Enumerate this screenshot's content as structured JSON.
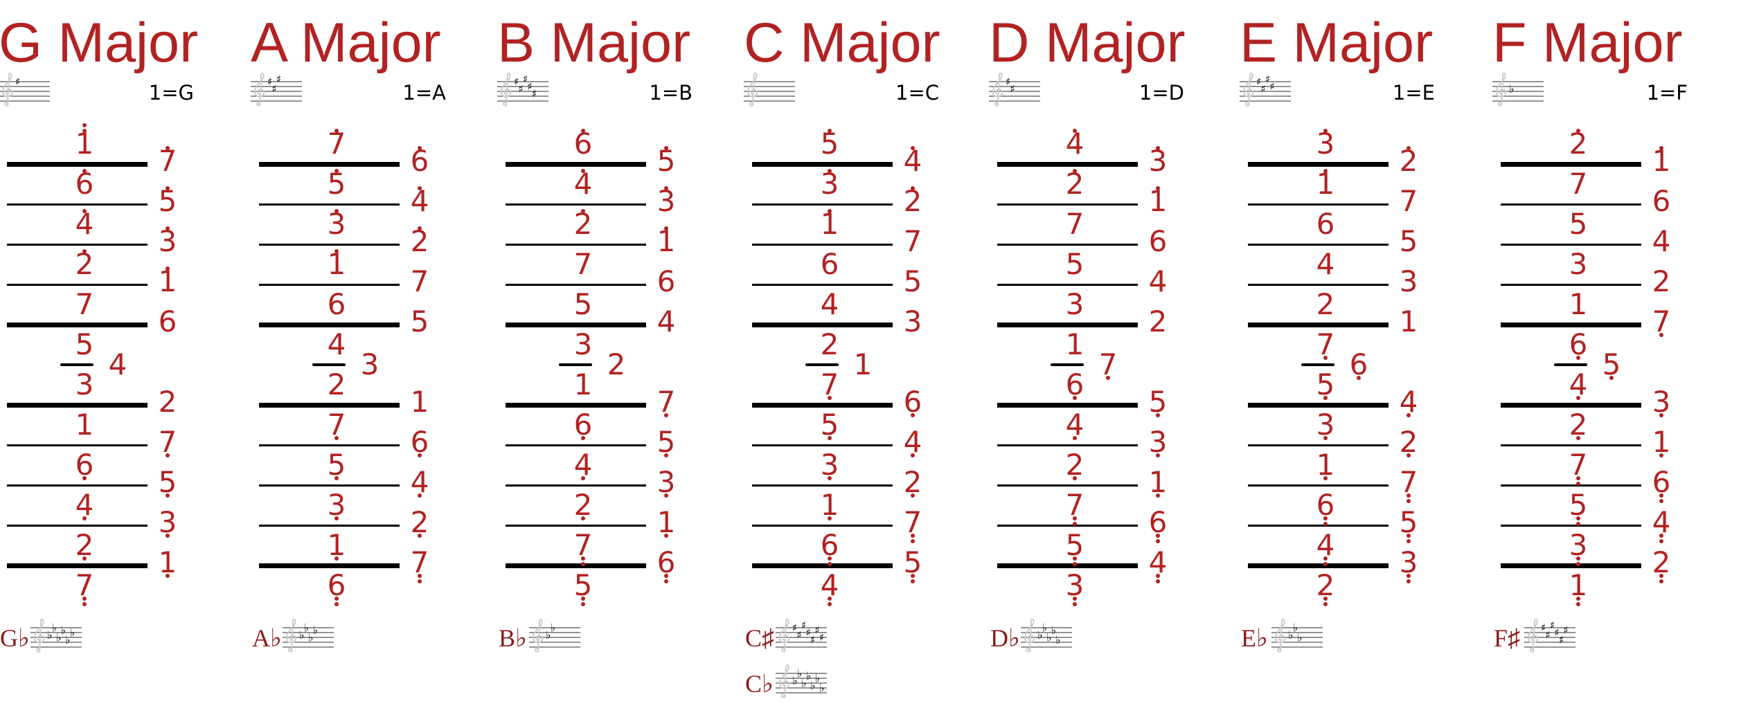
{
  "colors": {
    "accent": "#b22222",
    "label": "#8b1a1a",
    "clef": "#cccccc",
    "lines": "#000000"
  },
  "columns": [
    {
      "title": "G Major",
      "tonic_label": "1=G",
      "key_signature": {
        "type": "sharp",
        "count": 1
      },
      "notes": [
        {
          "d": "1",
          "o": 2
        },
        {
          "d": "7",
          "o": 1
        },
        {
          "d": "6",
          "o": 1
        },
        {
          "d": "5",
          "o": 1
        },
        {
          "d": "4",
          "o": 1
        },
        {
          "d": "3",
          "o": 1
        },
        {
          "d": "2",
          "o": 1
        },
        {
          "d": "1",
          "o": 1
        },
        {
          "d": "7",
          "o": 0
        },
        {
          "d": "6",
          "o": 0
        },
        {
          "d": "5",
          "o": 0
        },
        {
          "d": "4",
          "o": 0
        },
        {
          "d": "3",
          "o": 0
        },
        {
          "d": "2",
          "o": 0
        },
        {
          "d": "1",
          "o": 0
        },
        {
          "d": "7",
          "o": -1
        },
        {
          "d": "6",
          "o": -1
        },
        {
          "d": "5",
          "o": -1
        },
        {
          "d": "4",
          "o": -1
        },
        {
          "d": "3",
          "o": -1
        },
        {
          "d": "2",
          "o": -1
        },
        {
          "d": "1",
          "o": -1
        },
        {
          "d": "7",
          "o": -2
        }
      ],
      "enharmonics": [
        {
          "label": "G♭",
          "key_signature": {
            "type": "flat",
            "count": 6
          }
        }
      ]
    },
    {
      "title": "A Major",
      "tonic_label": "1=A",
      "key_signature": {
        "type": "sharp",
        "count": 3
      },
      "notes": [
        {
          "d": "7",
          "o": 1
        },
        {
          "d": "6",
          "o": 1
        },
        {
          "d": "5",
          "o": 1
        },
        {
          "d": "4",
          "o": 1
        },
        {
          "d": "3",
          "o": 1
        },
        {
          "d": "2",
          "o": 1
        },
        {
          "d": "1",
          "o": 1
        },
        {
          "d": "7",
          "o": 0
        },
        {
          "d": "6",
          "o": 0
        },
        {
          "d": "5",
          "o": 0
        },
        {
          "d": "4",
          "o": 0
        },
        {
          "d": "3",
          "o": 0
        },
        {
          "d": "2",
          "o": 0
        },
        {
          "d": "1",
          "o": 0
        },
        {
          "d": "7",
          "o": -1
        },
        {
          "d": "6",
          "o": -1
        },
        {
          "d": "5",
          "o": -1
        },
        {
          "d": "4",
          "o": -1
        },
        {
          "d": "3",
          "o": -1
        },
        {
          "d": "2",
          "o": -1
        },
        {
          "d": "1",
          "o": -1
        },
        {
          "d": "7",
          "o": -2
        },
        {
          "d": "6",
          "o": -2
        }
      ],
      "enharmonics": [
        {
          "label": "A♭",
          "key_signature": {
            "type": "flat",
            "count": 4
          }
        }
      ]
    },
    {
      "title": "B Major",
      "tonic_label": "1=B",
      "key_signature": {
        "type": "sharp",
        "count": 5
      },
      "notes": [
        {
          "d": "6",
          "o": 1
        },
        {
          "d": "5",
          "o": 1
        },
        {
          "d": "4",
          "o": 1
        },
        {
          "d": "3",
          "o": 1
        },
        {
          "d": "2",
          "o": 1
        },
        {
          "d": "1",
          "o": 1
        },
        {
          "d": "7",
          "o": 0
        },
        {
          "d": "6",
          "o": 0
        },
        {
          "d": "5",
          "o": 0
        },
        {
          "d": "4",
          "o": 0
        },
        {
          "d": "3",
          "o": 0
        },
        {
          "d": "2",
          "o": 0
        },
        {
          "d": "1",
          "o": 0
        },
        {
          "d": "7",
          "o": -1
        },
        {
          "d": "6",
          "o": -1
        },
        {
          "d": "5",
          "o": -1
        },
        {
          "d": "4",
          "o": -1
        },
        {
          "d": "3",
          "o": -1
        },
        {
          "d": "2",
          "o": -1
        },
        {
          "d": "1",
          "o": -1
        },
        {
          "d": "7",
          "o": -2
        },
        {
          "d": "6",
          "o": -2
        },
        {
          "d": "5",
          "o": -2
        }
      ],
      "enharmonics": [
        {
          "label": "B♭",
          "key_signature": {
            "type": "flat",
            "count": 2
          }
        }
      ]
    },
    {
      "title": "C Major",
      "tonic_label": "1=C",
      "key_signature": {
        "type": "none",
        "count": 0
      },
      "notes": [
        {
          "d": "5",
          "o": 1
        },
        {
          "d": "4",
          "o": 1
        },
        {
          "d": "3",
          "o": 1
        },
        {
          "d": "2",
          "o": 1
        },
        {
          "d": "1",
          "o": 1
        },
        {
          "d": "7",
          "o": 0
        },
        {
          "d": "6",
          "o": 0
        },
        {
          "d": "5",
          "o": 0
        },
        {
          "d": "4",
          "o": 0
        },
        {
          "d": "3",
          "o": 0
        },
        {
          "d": "2",
          "o": 0
        },
        {
          "d": "1",
          "o": 0
        },
        {
          "d": "7",
          "o": -1
        },
        {
          "d": "6",
          "o": -1
        },
        {
          "d": "5",
          "o": -1
        },
        {
          "d": "4",
          "o": -1
        },
        {
          "d": "3",
          "o": -1
        },
        {
          "d": "2",
          "o": -1
        },
        {
          "d": "1",
          "o": -1
        },
        {
          "d": "7",
          "o": -2
        },
        {
          "d": "6",
          "o": -2
        },
        {
          "d": "5",
          "o": -2
        },
        {
          "d": "4",
          "o": -2
        }
      ],
      "enharmonics": [
        {
          "label": "C♯",
          "key_signature": {
            "type": "sharp",
            "count": 7
          }
        },
        {
          "label": "C♭",
          "key_signature": {
            "type": "flat",
            "count": 7
          }
        }
      ]
    },
    {
      "title": "D Major",
      "tonic_label": "1=D",
      "key_signature": {
        "type": "sharp",
        "count": 2
      },
      "notes": [
        {
          "d": "4",
          "o": 1
        },
        {
          "d": "3",
          "o": 1
        },
        {
          "d": "2",
          "o": 1
        },
        {
          "d": "1",
          "o": 1
        },
        {
          "d": "7",
          "o": 0
        },
        {
          "d": "6",
          "o": 0
        },
        {
          "d": "5",
          "o": 0
        },
        {
          "d": "4",
          "o": 0
        },
        {
          "d": "3",
          "o": 0
        },
        {
          "d": "2",
          "o": 0
        },
        {
          "d": "1",
          "o": 0
        },
        {
          "d": "7",
          "o": -1
        },
        {
          "d": "6",
          "o": -1
        },
        {
          "d": "5",
          "o": -1
        },
        {
          "d": "4",
          "o": -1
        },
        {
          "d": "3",
          "o": -1
        },
        {
          "d": "2",
          "o": -1
        },
        {
          "d": "1",
          "o": -1
        },
        {
          "d": "7",
          "o": -2
        },
        {
          "d": "6",
          "o": -2
        },
        {
          "d": "5",
          "o": -2
        },
        {
          "d": "4",
          "o": -2
        },
        {
          "d": "3",
          "o": -2
        }
      ],
      "enharmonics": [
        {
          "label": "D♭",
          "key_signature": {
            "type": "flat",
            "count": 5
          }
        }
      ]
    },
    {
      "title": "E Major",
      "tonic_label": "1=E",
      "key_signature": {
        "type": "sharp",
        "count": 4
      },
      "notes": [
        {
          "d": "3",
          "o": 1
        },
        {
          "d": "2",
          "o": 1
        },
        {
          "d": "1",
          "o": 1
        },
        {
          "d": "7",
          "o": 0
        },
        {
          "d": "6",
          "o": 0
        },
        {
          "d": "5",
          "o": 0
        },
        {
          "d": "4",
          "o": 0
        },
        {
          "d": "3",
          "o": 0
        },
        {
          "d": "2",
          "o": 0
        },
        {
          "d": "1",
          "o": 0
        },
        {
          "d": "7",
          "o": -1
        },
        {
          "d": "6",
          "o": -1
        },
        {
          "d": "5",
          "o": -1
        },
        {
          "d": "4",
          "o": -1
        },
        {
          "d": "3",
          "o": -1
        },
        {
          "d": "2",
          "o": -1
        },
        {
          "d": "1",
          "o": -1
        },
        {
          "d": "7",
          "o": -2
        },
        {
          "d": "6",
          "o": -2
        },
        {
          "d": "5",
          "o": -2
        },
        {
          "d": "4",
          "o": -2
        },
        {
          "d": "3",
          "o": -2
        },
        {
          "d": "2",
          "o": -2
        }
      ],
      "enharmonics": [
        {
          "label": "E♭",
          "key_signature": {
            "type": "flat",
            "count": 3
          }
        }
      ]
    },
    {
      "title": "F Major",
      "tonic_label": "1=F",
      "key_signature": {
        "type": "flat",
        "count": 1
      },
      "notes": [
        {
          "d": "2",
          "o": 1
        },
        {
          "d": "1",
          "o": 1
        },
        {
          "d": "7",
          "o": 0
        },
        {
          "d": "6",
          "o": 0
        },
        {
          "d": "5",
          "o": 0
        },
        {
          "d": "4",
          "o": 0
        },
        {
          "d": "3",
          "o": 0
        },
        {
          "d": "2",
          "o": 0
        },
        {
          "d": "1",
          "o": 0
        },
        {
          "d": "7",
          "o": -1
        },
        {
          "d": "6",
          "o": -1
        },
        {
          "d": "5",
          "o": -1
        },
        {
          "d": "4",
          "o": -1
        },
        {
          "d": "3",
          "o": -1
        },
        {
          "d": "2",
          "o": -1
        },
        {
          "d": "1",
          "o": -1
        },
        {
          "d": "7",
          "o": -2
        },
        {
          "d": "6",
          "o": -2
        },
        {
          "d": "5",
          "o": -2
        },
        {
          "d": "4",
          "o": -2
        },
        {
          "d": "3",
          "o": -2
        },
        {
          "d": "2",
          "o": -2
        },
        {
          "d": "1",
          "o": -2
        }
      ],
      "enharmonics": [
        {
          "label": "F♯",
          "key_signature": {
            "type": "sharp",
            "count": 6
          }
        }
      ]
    }
  ]
}
